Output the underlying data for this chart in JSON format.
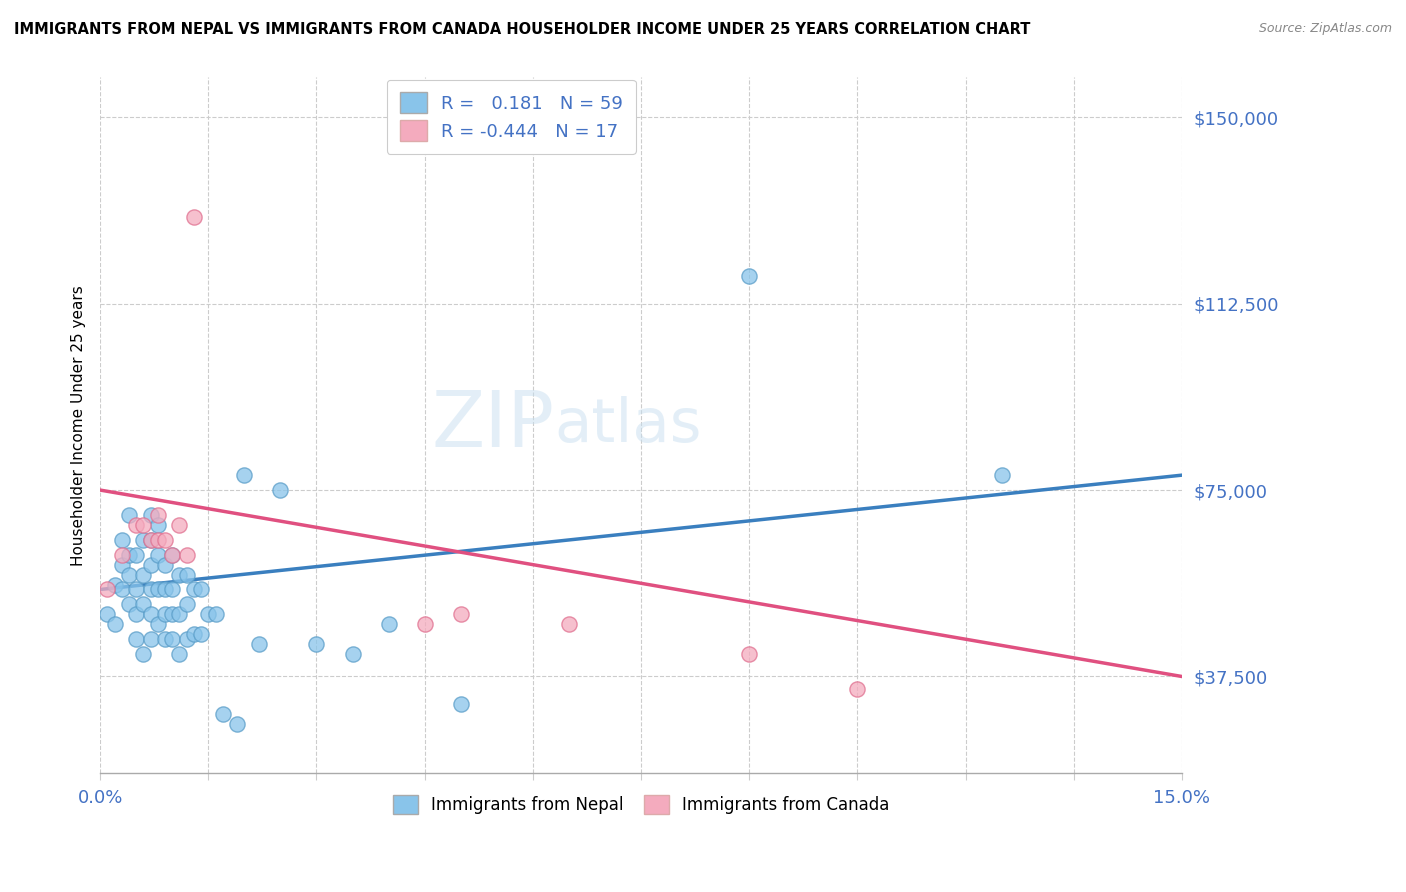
{
  "title": "IMMIGRANTS FROM NEPAL VS IMMIGRANTS FROM CANADA HOUSEHOLDER INCOME UNDER 25 YEARS CORRELATION CHART",
  "source": "Source: ZipAtlas.com",
  "ylabel": "Householder Income Under 25 years",
  "xlim": [
    0.0,
    0.15
  ],
  "ylim": [
    18000,
    158000
  ],
  "yticks": [
    37500,
    75000,
    112500,
    150000
  ],
  "ytick_labels": [
    "$37,500",
    "$75,000",
    "$112,500",
    "$150,000"
  ],
  "xticks": [
    0.0,
    0.015,
    0.03,
    0.045,
    0.06,
    0.075,
    0.09,
    0.105,
    0.12,
    0.135,
    0.15
  ],
  "nepal_color": "#89C4EA",
  "nepal_edge_color": "#5A9DC8",
  "canada_color": "#F4ABBE",
  "canada_edge_color": "#E07090",
  "nepal_line_color": "#3A7FBF",
  "canada_line_color": "#E05080",
  "nepal_R": 0.181,
  "nepal_N": 59,
  "canada_R": -0.444,
  "canada_N": 17,
  "nepal_x": [
    0.001,
    0.002,
    0.002,
    0.003,
    0.003,
    0.003,
    0.004,
    0.004,
    0.004,
    0.004,
    0.005,
    0.005,
    0.005,
    0.005,
    0.006,
    0.006,
    0.006,
    0.006,
    0.007,
    0.007,
    0.007,
    0.007,
    0.007,
    0.007,
    0.008,
    0.008,
    0.008,
    0.008,
    0.009,
    0.009,
    0.009,
    0.009,
    0.01,
    0.01,
    0.01,
    0.01,
    0.011,
    0.011,
    0.011,
    0.012,
    0.012,
    0.012,
    0.013,
    0.013,
    0.014,
    0.014,
    0.015,
    0.016,
    0.017,
    0.019,
    0.02,
    0.022,
    0.025,
    0.03,
    0.035,
    0.04,
    0.05,
    0.09,
    0.125
  ],
  "nepal_y": [
    50000,
    48000,
    56000,
    55000,
    60000,
    65000,
    52000,
    58000,
    62000,
    70000,
    45000,
    50000,
    55000,
    62000,
    42000,
    52000,
    58000,
    65000,
    45000,
    50000,
    55000,
    60000,
    65000,
    70000,
    48000,
    55000,
    62000,
    68000,
    45000,
    50000,
    55000,
    60000,
    45000,
    50000,
    55000,
    62000,
    42000,
    50000,
    58000,
    45000,
    52000,
    58000,
    46000,
    55000,
    46000,
    55000,
    50000,
    50000,
    30000,
    28000,
    78000,
    44000,
    75000,
    44000,
    42000,
    48000,
    32000,
    118000,
    78000
  ],
  "canada_x": [
    0.001,
    0.003,
    0.005,
    0.006,
    0.007,
    0.008,
    0.008,
    0.009,
    0.01,
    0.011,
    0.012,
    0.013,
    0.045,
    0.05,
    0.065,
    0.09,
    0.105
  ],
  "canada_y": [
    55000,
    62000,
    68000,
    68000,
    65000,
    70000,
    65000,
    65000,
    62000,
    68000,
    62000,
    130000,
    48000,
    50000,
    48000,
    42000,
    35000
  ]
}
